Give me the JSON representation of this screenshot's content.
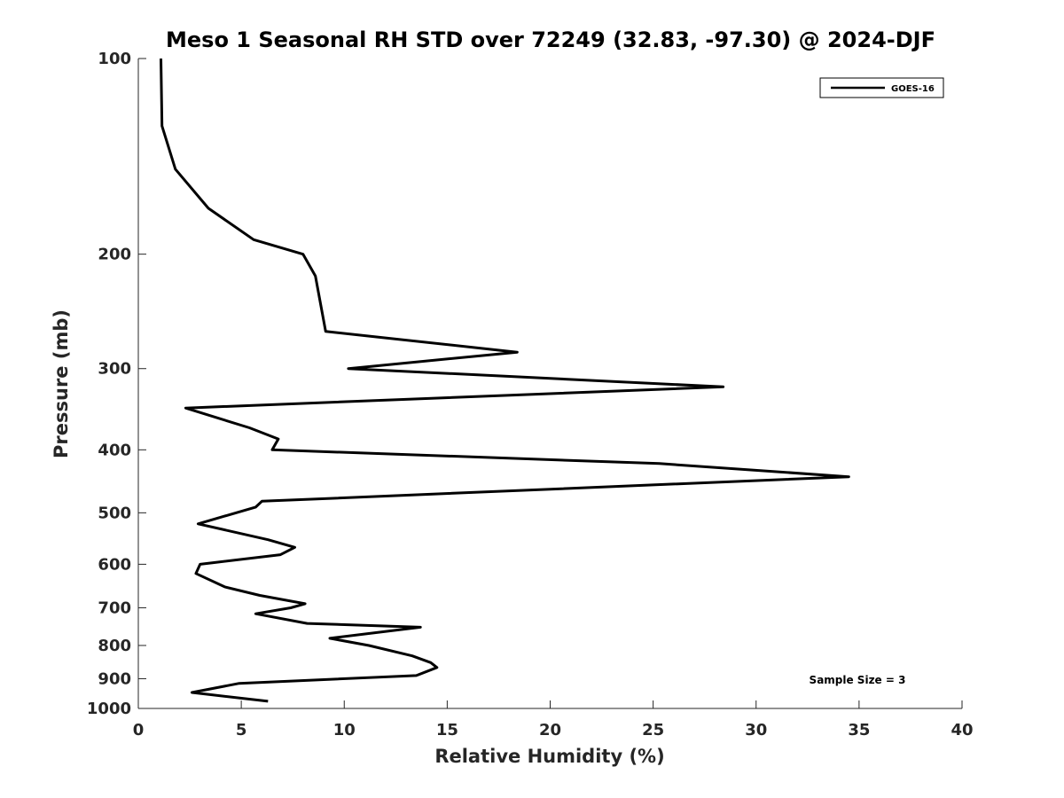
{
  "chart_data": {
    "type": "line",
    "title": "Meso 1 Seasonal RH STD over 72249 (32.83, -97.30) @ 2024-DJF",
    "xlabel": "Relative Humidity (%)",
    "ylabel": "Pressure (mb)",
    "xlim": [
      0,
      40
    ],
    "ylim": [
      100,
      1000
    ],
    "y_scale": "log",
    "y_reversed": true,
    "grid": false,
    "x_ticks": [
      "0",
      "5",
      "10",
      "15",
      "20",
      "25",
      "30",
      "35",
      "40"
    ],
    "y_ticks": [
      "100",
      "200",
      "300",
      "400",
      "500",
      "600",
      "700",
      "800",
      "900",
      "1000"
    ],
    "legend": {
      "position": "top-right",
      "entries": [
        "GOES-16"
      ]
    },
    "annotation": "Sample Size = 3",
    "series": [
      {
        "name": "GOES-16",
        "color": "#000000",
        "x": [
          1.1,
          1.15,
          1.8,
          3.4,
          5.6,
          8.0,
          8.6,
          9.1,
          18.4,
          10.2,
          28.4,
          2.3,
          5.4,
          6.8,
          6.5,
          25.3,
          34.5,
          6.0,
          5.7,
          2.9,
          6.3,
          7.6,
          6.9,
          3.0,
          2.8,
          4.2,
          5.9,
          8.1,
          7.4,
          5.7,
          8.2,
          13.7,
          9.3,
          11.2,
          13.3,
          14.2,
          14.5,
          13.5,
          4.9,
          2.6,
          6.3
        ],
        "y": [
          100,
          127,
          148,
          170,
          190,
          200,
          216,
          263,
          283,
          300,
          320,
          345,
          370,
          385,
          400,
          420,
          440,
          480,
          490,
          520,
          550,
          565,
          580,
          600,
          620,
          650,
          670,
          690,
          700,
          715,
          740,
          750,
          780,
          800,
          830,
          850,
          865,
          890,
          915,
          945,
          975
        ]
      }
    ]
  }
}
